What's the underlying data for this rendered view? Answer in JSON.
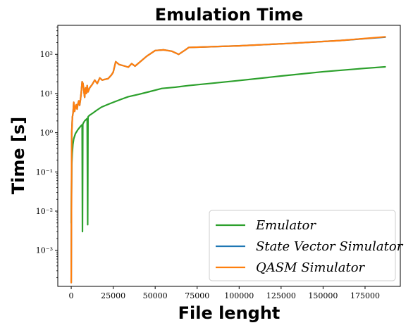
{
  "chart_data": {
    "type": "line",
    "title": "Emulation Time",
    "xlabel": "File lenght",
    "ylabel": "Time [s]",
    "xscale": "linear",
    "yscale": "log",
    "xlim": [
      -8000,
      196000
    ],
    "ylim": [
      0.00012,
      550
    ],
    "x_ticks": [
      0,
      25000,
      50000,
      75000,
      100000,
      125000,
      150000,
      175000
    ],
    "y_ticks": [
      0.001,
      0.01,
      0.1,
      1,
      10,
      100
    ],
    "y_tick_labels": [
      "10⁻³",
      "10⁻²",
      "10⁻¹",
      "10⁰",
      "10¹",
      "10²"
    ],
    "grid": false,
    "legend_position": "lower right",
    "series": [
      {
        "name": "Emulator",
        "color": "#2ca02c",
        "x": [
          0,
          300,
          600,
          1000,
          1500,
          2500,
          4000,
          5500,
          6500,
          6700,
          6900,
          7200,
          8000,
          9500,
          9800,
          10000,
          10200,
          11000,
          13000,
          15000,
          18000,
          22000,
          26000,
          30000,
          34000,
          40000,
          46000,
          54000,
          62000,
          70000,
          85000,
          100000,
          125000,
          150000,
          175000,
          187000
        ],
        "y": [
          0.005,
          0.15,
          0.3,
          0.5,
          0.7,
          0.95,
          1.2,
          1.45,
          1.6,
          0.003,
          1.65,
          1.75,
          2.0,
          2.3,
          0.0045,
          2.5,
          2.6,
          2.8,
          3.2,
          3.7,
          4.5,
          5.3,
          6.2,
          7.2,
          8.3,
          9.5,
          11.0,
          13.5,
          14.5,
          16.0,
          18.5,
          21.5,
          28.0,
          36.0,
          44.0,
          48.0
        ]
      },
      {
        "name": "State Vector Simulator",
        "color": "#1f77b4",
        "x": [
          0,
          300,
          700,
          1100,
          1500,
          2000,
          2500,
          3000,
          3500,
          4000,
          4500,
          5000,
          5500,
          6000,
          6500,
          7000,
          7500,
          8000,
          8500,
          9000,
          9500,
          10000,
          11000,
          12500,
          14000,
          15500,
          17000,
          18500,
          20000,
          22000,
          24000,
          25000,
          26500,
          28500,
          32000,
          34000,
          36000,
          38000,
          45000,
          50000,
          55000,
          60000,
          64000,
          68000,
          70000,
          100000,
          130000,
          160000,
          187000
        ],
        "y": [
          0.00015,
          1.0,
          2.5,
          3.2,
          6.0,
          3.5,
          4.5,
          5.2,
          4.0,
          5.5,
          6.5,
          5.0,
          7.0,
          11.0,
          20.0,
          18.0,
          12.0,
          8.0,
          14.0,
          10.0,
          16.0,
          11.0,
          14.0,
          17.0,
          22.0,
          18.0,
          25.0,
          22.0,
          23.0,
          24.0,
          30.0,
          35.0,
          65.0,
          55.0,
          50.0,
          47.0,
          58.0,
          50.0,
          90.0,
          125.0,
          130.0,
          120.0,
          100.0,
          130.0,
          150.0,
          165.0,
          190.0,
          225.0,
          275.0
        ]
      },
      {
        "name": "QASM Simulator",
        "color": "#ff7f0e",
        "x": [
          0,
          300,
          700,
          1100,
          1500,
          2000,
          2500,
          3000,
          3500,
          4000,
          4500,
          5000,
          5500,
          6000,
          6500,
          7000,
          7500,
          8000,
          8500,
          9000,
          9500,
          10000,
          11000,
          12500,
          14000,
          15500,
          17000,
          18500,
          20000,
          22000,
          24000,
          25000,
          26500,
          28500,
          32000,
          34000,
          36000,
          38000,
          45000,
          50000,
          55000,
          60000,
          64000,
          68000,
          70000,
          100000,
          130000,
          160000,
          187000
        ],
        "y": [
          0.00015,
          1.0,
          2.5,
          3.2,
          6.0,
          3.5,
          4.5,
          5.2,
          4.0,
          5.5,
          6.5,
          5.0,
          7.0,
          11.0,
          20.0,
          18.0,
          12.0,
          8.0,
          14.0,
          10.0,
          16.0,
          11.0,
          14.0,
          17.0,
          22.0,
          18.0,
          25.0,
          22.0,
          23.0,
          24.0,
          30.0,
          35.0,
          65.0,
          55.0,
          50.0,
          47.0,
          58.0,
          50.0,
          90.0,
          125.0,
          130.0,
          120.0,
          100.0,
          130.0,
          150.0,
          165.0,
          190.0,
          225.0,
          280.0
        ]
      }
    ]
  }
}
